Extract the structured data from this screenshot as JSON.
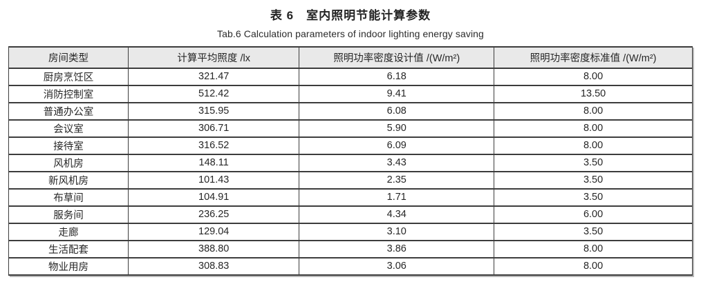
{
  "title": {
    "zh": "表 6　室内照明节能计算参数",
    "en": "Tab.6 Calculation parameters of indoor lighting energy saving"
  },
  "table": {
    "headers": [
      "房间类型",
      "计算平均照度 /lx",
      "照明功率密度设计值 /(W/m²)",
      "照明功率密度标准值 /(W/m²)"
    ],
    "rows": [
      {
        "room": "厨房烹饪区",
        "avg_illuminance": "321.47",
        "lpd_design": "6.18",
        "lpd_standard": "8.00"
      },
      {
        "room": "消防控制室",
        "avg_illuminance": "512.42",
        "lpd_design": "9.41",
        "lpd_standard": "13.50"
      },
      {
        "room": "普通办公室",
        "avg_illuminance": "315.95",
        "lpd_design": "6.08",
        "lpd_standard": "8.00"
      },
      {
        "room": "会议室",
        "avg_illuminance": "306.71",
        "lpd_design": "5.90",
        "lpd_standard": "8.00"
      },
      {
        "room": "接待室",
        "avg_illuminance": "316.52",
        "lpd_design": "6.09",
        "lpd_standard": "8.00"
      },
      {
        "room": "风机房",
        "avg_illuminance": "148.11",
        "lpd_design": "3.43",
        "lpd_standard": "3.50"
      },
      {
        "room": "新风机房",
        "avg_illuminance": "101.43",
        "lpd_design": "2.35",
        "lpd_standard": "3.50"
      },
      {
        "room": "布草间",
        "avg_illuminance": "104.91",
        "lpd_design": "1.71",
        "lpd_standard": "3.50"
      },
      {
        "room": "服务间",
        "avg_illuminance": "236.25",
        "lpd_design": "4.34",
        "lpd_standard": "6.00"
      },
      {
        "room": "走廊",
        "avg_illuminance": "129.04",
        "lpd_design": "3.10",
        "lpd_standard": "3.50"
      },
      {
        "room": "生活配套",
        "avg_illuminance": "388.80",
        "lpd_design": "3.86",
        "lpd_standard": "8.00"
      },
      {
        "room": "物业用房",
        "avg_illuminance": "308.83",
        "lpd_design": "3.06",
        "lpd_standard": "8.00"
      }
    ]
  },
  "colors": {
    "header_bg": "#e9e9e9",
    "border": "#3c3c3c",
    "text": "#262626"
  }
}
